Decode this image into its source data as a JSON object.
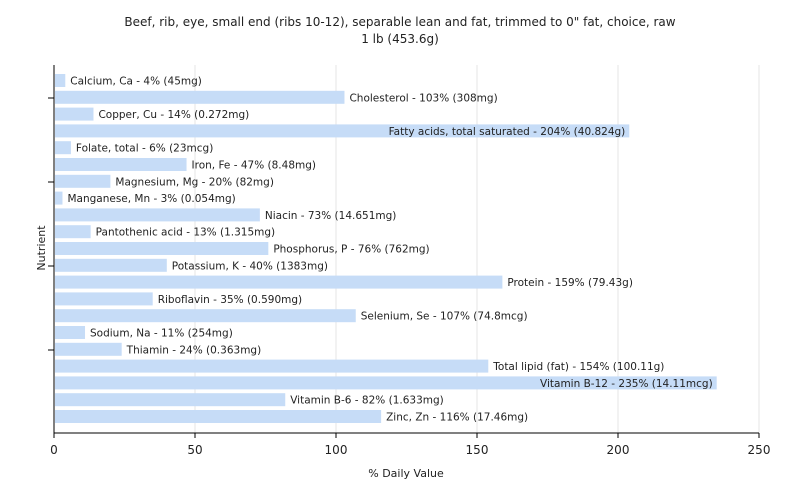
{
  "chart_data": {
    "type": "bar",
    "orientation": "horizontal",
    "title": "Beef, rib, eye, small end (ribs 10-12), separable lean and fat, trimmed to 0\" fat, choice, raw",
    "subtitle": "1 lb (453.6g)",
    "xlabel": "% Daily Value",
    "ylabel": "Nutrient",
    "xlim": [
      0,
      250
    ],
    "xticks": [
      0,
      50,
      100,
      150,
      200,
      250
    ],
    "grid": "vertical",
    "bar_color": "#c6dcf7",
    "categories": [
      "Calcium, Ca",
      "Cholesterol",
      "Copper, Cu",
      "Fatty acids, total saturated",
      "Folate, total",
      "Iron, Fe",
      "Magnesium, Mg",
      "Manganese, Mn",
      "Niacin",
      "Pantothenic acid",
      "Phosphorus, P",
      "Potassium, K",
      "Protein",
      "Riboflavin",
      "Selenium, Se",
      "Sodium, Na",
      "Thiamin",
      "Total lipid (fat)",
      "Vitamin B-12",
      "Vitamin B-6",
      "Zinc, Zn"
    ],
    "values": [
      4,
      103,
      14,
      204,
      6,
      47,
      20,
      3,
      73,
      13,
      76,
      40,
      159,
      35,
      107,
      11,
      24,
      154,
      235,
      82,
      116
    ],
    "labels": [
      "Calcium, Ca - 4% (45mg)",
      "Cholesterol - 103% (308mg)",
      "Copper, Cu - 14% (0.272mg)",
      "Fatty acids, total saturated - 204% (40.824g)",
      "Folate, total - 6% (23mcg)",
      "Iron, Fe - 47% (8.48mg)",
      "Magnesium, Mg - 20% (82mg)",
      "Manganese, Mn - 3% (0.054mg)",
      "Niacin - 73% (14.651mg)",
      "Pantothenic acid - 13% (1.315mg)",
      "Phosphorus, P - 76% (762mg)",
      "Potassium, K - 40% (1383mg)",
      "Protein - 159% (79.43g)",
      "Riboflavin - 35% (0.590mg)",
      "Selenium, Se - 107% (74.8mcg)",
      "Sodium, Na - 11% (254mg)",
      "Thiamin - 24% (0.363mg)",
      "Total lipid (fat) - 154% (100.11g)",
      "Vitamin B-12 - 235% (14.11mcg)",
      "Vitamin B-6 - 82% (1.633mg)",
      "Zinc, Zn - 116% (17.46mg)"
    ]
  }
}
